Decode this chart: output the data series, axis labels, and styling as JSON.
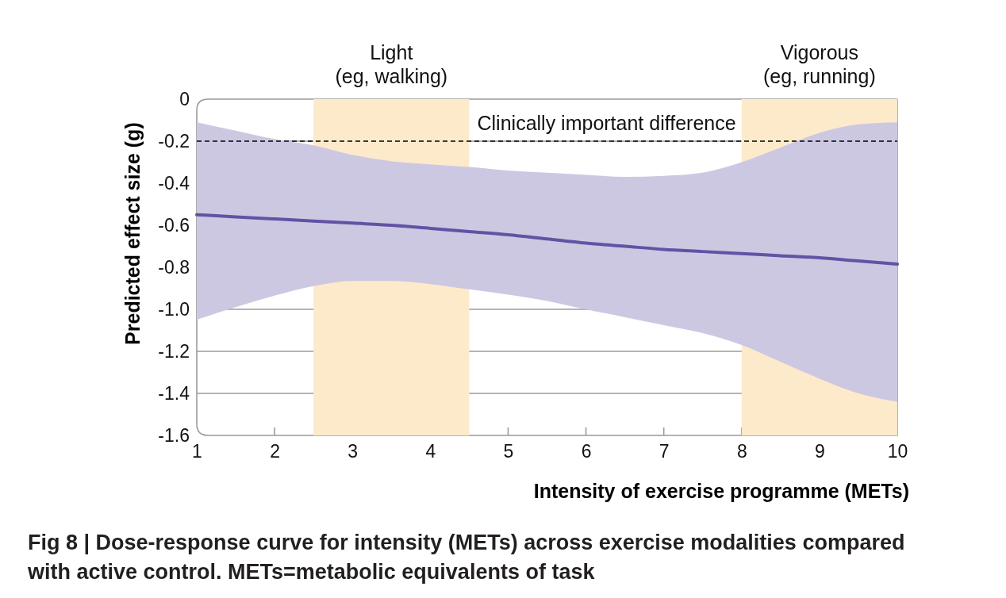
{
  "chart_data": {
    "type": "line",
    "title": "Fig 8 | Dose-response curve for intensity (METs) across exercise modalities compared with active control. METs=metabolic equivalents of task",
    "xlabel": "Intensity of exercise programme (METs)",
    "ylabel": "Predicted effect size (g)",
    "x": [
      1,
      1.5,
      2,
      2.5,
      3,
      3.5,
      4,
      4.5,
      5,
      5.5,
      6,
      6.5,
      7,
      7.5,
      8,
      8.5,
      9,
      9.5,
      10
    ],
    "series": [
      {
        "color": "#6352a4",
        "values": [
          -0.55,
          -0.56,
          -0.57,
          -0.58,
          -0.59,
          -0.6,
          -0.615,
          -0.63,
          -0.645,
          -0.665,
          -0.685,
          -0.7,
          -0.715,
          -0.725,
          -0.735,
          -0.745,
          -0.755,
          -0.77,
          -0.785
        ],
        "upper": [
          -0.11,
          -0.15,
          -0.19,
          -0.22,
          -0.265,
          -0.295,
          -0.31,
          -0.323,
          -0.34,
          -0.35,
          -0.36,
          -0.37,
          -0.365,
          -0.35,
          -0.3,
          -0.23,
          -0.16,
          -0.12,
          -0.11
        ],
        "lower": [
          -1.05,
          -0.99,
          -0.935,
          -0.89,
          -0.865,
          -0.865,
          -0.88,
          -0.905,
          -0.93,
          -0.96,
          -1,
          -1.038,
          -1.075,
          -1.113,
          -1.17,
          -1.25,
          -1.33,
          -1.4,
          -1.44
        ]
      }
    ],
    "xlim": [
      1,
      10
    ],
    "xticks": [
      1,
      2,
      3,
      4,
      5,
      6,
      7,
      8,
      9,
      10
    ],
    "ylim": [
      -1.6,
      0
    ],
    "yticks": [
      0,
      -0.2,
      -0.4,
      -0.6,
      -0.8,
      {
        "value": -1,
        "label": "-1.0"
      },
      -1.2,
      -1.4,
      -1.6
    ],
    "grid": "y",
    "ref_lines": [
      {
        "axis": "y",
        "value": -0.2,
        "label": "Clinically important difference",
        "color": "#000000",
        "line_style": "dashed"
      }
    ],
    "bands": [
      {
        "axis": "x",
        "from": 2.5,
        "to": 4.5,
        "label": "Light\n(eg, walking)",
        "color": "#fdeacb"
      },
      {
        "axis": "x",
        "from": 8,
        "to": 10,
        "label": "Vigorous\n(eg, running)",
        "color": "#fdeacb"
      }
    ]
  }
}
